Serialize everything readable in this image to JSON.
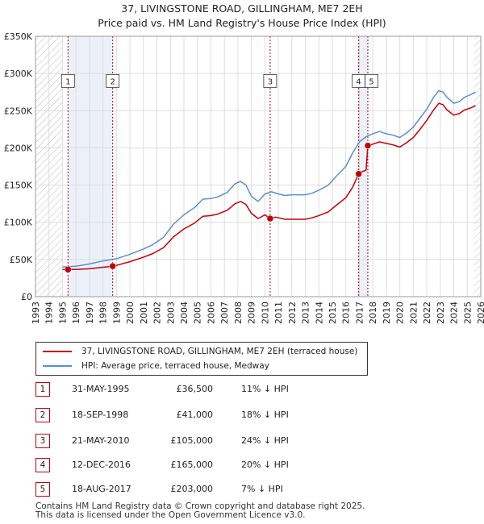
{
  "title_line1": "37, LIVINGSTONE ROAD, GILLINGHAM, ME7 2EH",
  "title_line2": "Price paid vs. HM Land Registry's House Price Index (HPI)",
  "colors": {
    "property": "#c0000b",
    "hpi": "#5b8fd0",
    "shade": "#dfe8f5"
  },
  "chart_data": {
    "type": "line",
    "xlim": [
      1993,
      2026
    ],
    "ylim": [
      0,
      350000
    ],
    "x_ticks": [
      1993,
      1994,
      1995,
      1996,
      1997,
      1998,
      1999,
      2000,
      2001,
      2002,
      2003,
      2004,
      2005,
      2006,
      2007,
      2008,
      2009,
      2010,
      2011,
      2012,
      2013,
      2014,
      2015,
      2016,
      2017,
      2018,
      2019,
      2020,
      2021,
      2022,
      2023,
      2024,
      2025,
      2026
    ],
    "x_tick_labels": [
      "1993",
      "1994",
      "1995",
      "1996",
      "1997",
      "1998",
      "1999",
      "2000",
      "2001",
      "2002",
      "2003",
      "2004",
      "2005",
      "2006",
      "2007",
      "2008",
      "2009",
      "2010",
      "2011",
      "2012",
      "2013",
      "2014",
      "2015",
      "2016",
      "2017",
      "2018",
      "2019",
      "2020",
      "2021",
      "2022",
      "2023",
      "2024",
      "2025",
      "2026"
    ],
    "y_ticks": [
      0,
      50000,
      100000,
      150000,
      200000,
      250000,
      300000,
      350000
    ],
    "y_tick_labels": [
      "£0",
      "£50K",
      "£100K",
      "£150K",
      "£200K",
      "£250K",
      "£300K",
      "£350K"
    ],
    "series": [
      {
        "name": "hpi",
        "points": [
          [
            1995.0,
            40000
          ],
          [
            1996.0,
            41000
          ],
          [
            1997.0,
            44000
          ],
          [
            1998.0,
            48000
          ],
          [
            1999.0,
            51000
          ],
          [
            2000.0,
            57000
          ],
          [
            2001.0,
            64000
          ],
          [
            2001.7,
            70000
          ],
          [
            2002.5,
            80000
          ],
          [
            2003.2,
            97000
          ],
          [
            2004.0,
            110000
          ],
          [
            2004.8,
            120000
          ],
          [
            2005.4,
            131000
          ],
          [
            2006.0,
            132000
          ],
          [
            2006.5,
            134000
          ],
          [
            2007.2,
            140000
          ],
          [
            2007.8,
            152000
          ],
          [
            2008.2,
            155000
          ],
          [
            2008.6,
            150000
          ],
          [
            2009.0,
            135000
          ],
          [
            2009.5,
            128000
          ],
          [
            2010.0,
            138000
          ],
          [
            2010.5,
            141000
          ],
          [
            2011.0,
            138000
          ],
          [
            2011.5,
            136000
          ],
          [
            2012.0,
            137000
          ],
          [
            2013.0,
            137000
          ],
          [
            2013.5,
            139000
          ],
          [
            2014.0,
            143000
          ],
          [
            2014.7,
            150000
          ],
          [
            2015.3,
            162000
          ],
          [
            2016.0,
            175000
          ],
          [
            2016.5,
            193000
          ],
          [
            2017.0,
            208000
          ],
          [
            2017.5,
            215000
          ],
          [
            2018.0,
            219000
          ],
          [
            2018.5,
            222000
          ],
          [
            2019.0,
            219000
          ],
          [
            2019.5,
            217000
          ],
          [
            2020.0,
            214000
          ],
          [
            2020.5,
            220000
          ],
          [
            2021.0,
            228000
          ],
          [
            2021.5,
            240000
          ],
          [
            2022.0,
            252000
          ],
          [
            2022.5,
            268000
          ],
          [
            2022.9,
            277000
          ],
          [
            2023.2,
            275000
          ],
          [
            2023.5,
            268000
          ],
          [
            2024.0,
            260000
          ],
          [
            2024.4,
            262000
          ],
          [
            2024.8,
            268000
          ],
          [
            2025.3,
            272000
          ],
          [
            2025.6,
            275000
          ]
        ]
      },
      {
        "name": "property",
        "points": [
          [
            1995.0,
            36500
          ],
          [
            1996.0,
            36500
          ],
          [
            1997.0,
            37500
          ],
          [
            1998.0,
            39500
          ],
          [
            1998.72,
            41000
          ],
          [
            1999.0,
            42000
          ],
          [
            2000.0,
            47000
          ],
          [
            2001.0,
            53000
          ],
          [
            2001.7,
            58000
          ],
          [
            2002.5,
            66000
          ],
          [
            2003.2,
            80000
          ],
          [
            2004.0,
            91000
          ],
          [
            2004.8,
            99000
          ],
          [
            2005.4,
            108000
          ],
          [
            2006.0,
            109000
          ],
          [
            2006.5,
            111000
          ],
          [
            2007.2,
            116000
          ],
          [
            2007.8,
            125000
          ],
          [
            2008.2,
            128000
          ],
          [
            2008.6,
            124000
          ],
          [
            2009.0,
            112000
          ],
          [
            2009.5,
            105000
          ],
          [
            2010.0,
            110000
          ],
          [
            2010.39,
            105000
          ],
          [
            2010.8,
            107000
          ],
          [
            2011.5,
            104000
          ],
          [
            2012.0,
            104000
          ],
          [
            2013.0,
            104000
          ],
          [
            2013.5,
            106000
          ],
          [
            2014.0,
            109000
          ],
          [
            2014.7,
            114000
          ],
          [
            2015.3,
            123000
          ],
          [
            2016.0,
            133000
          ],
          [
            2016.5,
            147000
          ],
          [
            2016.95,
            165000
          ],
          [
            2017.2,
            168000
          ],
          [
            2017.5,
            170000
          ],
          [
            2017.63,
            203000
          ],
          [
            2018.0,
            205000
          ],
          [
            2018.5,
            208000
          ],
          [
            2019.0,
            206000
          ],
          [
            2019.5,
            204000
          ],
          [
            2020.0,
            201000
          ],
          [
            2020.5,
            207000
          ],
          [
            2021.0,
            214000
          ],
          [
            2021.5,
            225000
          ],
          [
            2022.0,
            237000
          ],
          [
            2022.5,
            251000
          ],
          [
            2022.9,
            260000
          ],
          [
            2023.2,
            258000
          ],
          [
            2023.5,
            251000
          ],
          [
            2024.0,
            244000
          ],
          [
            2024.4,
            246000
          ],
          [
            2024.8,
            251000
          ],
          [
            2025.3,
            254000
          ],
          [
            2025.6,
            257000
          ]
        ]
      }
    ],
    "sales": [
      {
        "label": "1",
        "x": 1995.41,
        "y": 36500,
        "label_y": 290000
      },
      {
        "label": "2",
        "x": 1998.72,
        "y": 41000,
        "label_y": 290000
      },
      {
        "label": "3",
        "x": 2010.39,
        "y": 105000,
        "label_y": 290000
      },
      {
        "label": "4",
        "x": 2016.95,
        "y": 165000,
        "label_y": 290000
      },
      {
        "label": "5",
        "x": 2017.63,
        "y": 203000,
        "label_y": 290000
      }
    ],
    "hatched_regions": [
      [
        1993,
        1995.0
      ],
      [
        2025.5,
        2026
      ]
    ],
    "shaded_regions": [
      [
        1995.41,
        1998.72
      ],
      [
        2016.95,
        2017.63
      ]
    ]
  },
  "legend": {
    "property_label": "37, LIVINGSTONE ROAD, GILLINGHAM, ME7 2EH (terraced house)",
    "hpi_label": "HPI: Average price, terraced house, Medway"
  },
  "transactions": [
    {
      "num": "1",
      "date": "31-MAY-1995",
      "price": "£36,500",
      "hpi": "11% ↓ HPI"
    },
    {
      "num": "2",
      "date": "18-SEP-1998",
      "price": "£41,000",
      "hpi": "18% ↓ HPI"
    },
    {
      "num": "3",
      "date": "21-MAY-2010",
      "price": "£105,000",
      "hpi": "24% ↓ HPI"
    },
    {
      "num": "4",
      "date": "12-DEC-2016",
      "price": "£165,000",
      "hpi": "20% ↓ HPI"
    },
    {
      "num": "5",
      "date": "18-AUG-2017",
      "price": "£203,000",
      "hpi": "7% ↓ HPI"
    }
  ],
  "footer": {
    "line1": "Contains HM Land Registry data © Crown copyright and database right 2025.",
    "line2": "This data is licensed under the Open Government Licence v3.0."
  }
}
